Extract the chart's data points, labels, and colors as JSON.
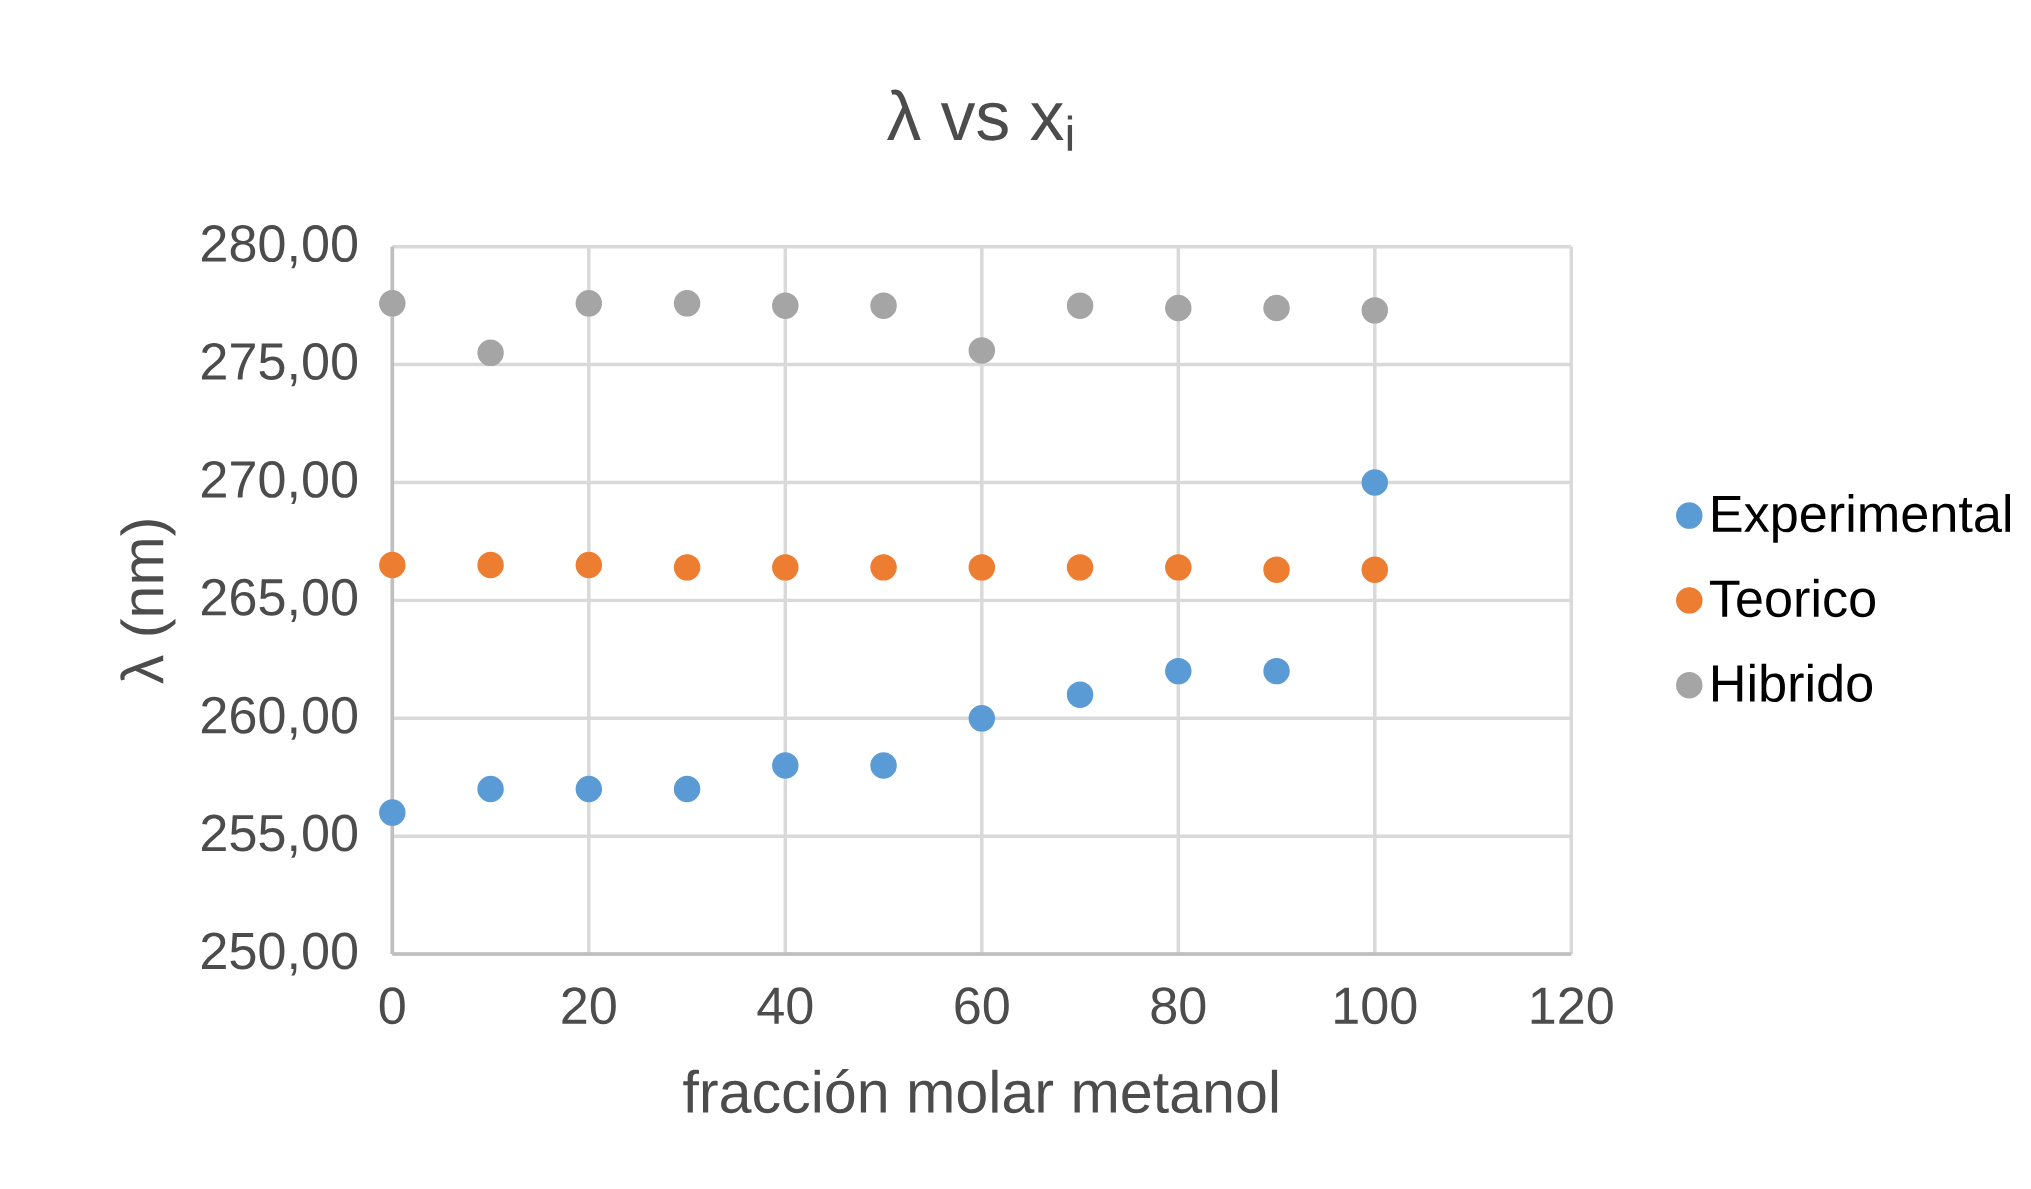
{
  "chart_data": {
    "type": "scatter",
    "title": "λ vs x$_{i}$",
    "xlabel": "fracción molar metanol",
    "ylabel": "λ (nm)",
    "x": [
      0,
      10,
      20,
      30,
      40,
      50,
      60,
      70,
      80,
      90,
      100
    ],
    "series": [
      {
        "name": "Experimental",
        "color": "#5b9bd5",
        "values": [
          256,
          257,
          257,
          257,
          258,
          258,
          260,
          261,
          262,
          262,
          270
        ]
      },
      {
        "name": "Teorico",
        "color": "#ed7d31",
        "values": [
          266.5,
          266.5,
          266.5,
          266.4,
          266.4,
          266.4,
          266.4,
          266.4,
          266.4,
          266.3,
          266.3
        ]
      },
      {
        "name": "Hibrido",
        "color": "#a5a5a5",
        "values": [
          277.6,
          275.5,
          277.6,
          277.6,
          277.5,
          277.5,
          275.6,
          277.5,
          277.4,
          277.4,
          277.3
        ]
      }
    ],
    "xlim": [
      0,
      120
    ],
    "xticks": [
      0,
      20,
      40,
      60,
      80,
      100,
      120
    ],
    "ylim": [
      250,
      280
    ],
    "yticks": [
      {
        "value": 250,
        "label": "250,00"
      },
      {
        "value": 255,
        "label": "255,00"
      },
      {
        "value": 260,
        "label": "260,00"
      },
      {
        "value": 265,
        "label": "265,00"
      },
      {
        "value": 270,
        "label": "270,00"
      },
      {
        "value": 275,
        "label": "275,00"
      },
      {
        "value": 280,
        "label": "280,00"
      }
    ],
    "grid": true,
    "legend": "right",
    "marker": "circle"
  }
}
